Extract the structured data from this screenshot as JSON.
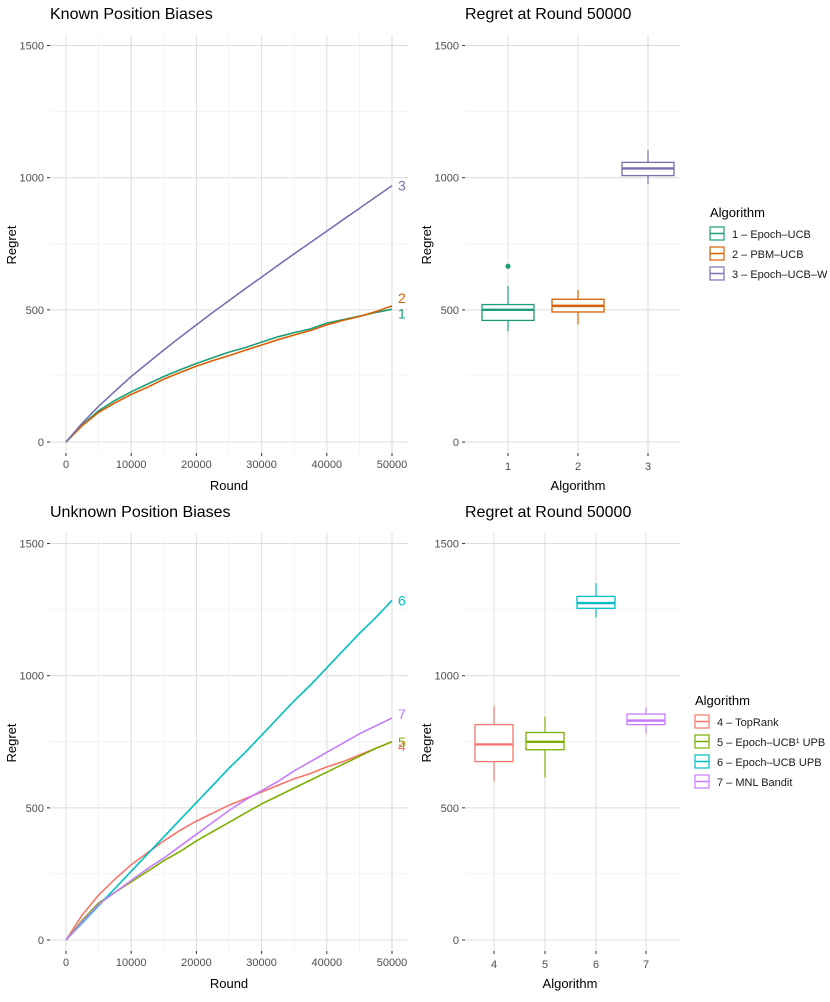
{
  "colors": {
    "1": "#1B9E77",
    "2": "#D95F02",
    "3": "#7570B3",
    "4": "#F8766D",
    "5": "#7CAE00",
    "6": "#00BFC4",
    "7": "#C77CFF"
  },
  "chart_data": [
    {
      "type": "line",
      "title": "Known Position Biases",
      "xlabel": "Round",
      "ylabel": "Regret",
      "xlim": [
        0,
        50000
      ],
      "ylim": [
        0,
        1500
      ],
      "xticks": [
        0,
        10000,
        20000,
        30000,
        40000,
        50000
      ],
      "yticks": [
        0,
        500,
        1000,
        1500
      ],
      "series": [
        {
          "name": "1",
          "x": [
            0,
            2500,
            5000,
            7500,
            10000,
            12500,
            15000,
            17500,
            20000,
            22500,
            25000,
            27500,
            30000,
            32500,
            35000,
            37500,
            40000,
            42500,
            45000,
            47500,
            50000
          ],
          "y": [
            0,
            65,
            118,
            157,
            190,
            219,
            248,
            273,
            297,
            319,
            340,
            357,
            378,
            398,
            414,
            428,
            450,
            463,
            476,
            490,
            502
          ]
        },
        {
          "name": "2",
          "x": [
            0,
            2500,
            5000,
            7500,
            10000,
            12500,
            15000,
            17500,
            20000,
            22500,
            25000,
            27500,
            30000,
            32500,
            35000,
            37500,
            40000,
            42500,
            45000,
            47500,
            50000
          ],
          "y": [
            0,
            62,
            112,
            148,
            180,
            207,
            238,
            263,
            287,
            308,
            327,
            347,
            367,
            387,
            405,
            422,
            443,
            460,
            475,
            493,
            515
          ]
        },
        {
          "name": "3",
          "x": [
            0,
            2500,
            5000,
            7500,
            10000,
            12500,
            15000,
            17500,
            20000,
            22500,
            25000,
            27500,
            30000,
            32500,
            35000,
            37500,
            40000,
            42500,
            45000,
            47500,
            50000
          ],
          "y": [
            0,
            72,
            135,
            192,
            248,
            298,
            348,
            396,
            443,
            490,
            535,
            580,
            624,
            668,
            712,
            755,
            798,
            841,
            884,
            927,
            970
          ]
        }
      ],
      "end_labels": [
        "3",
        "2",
        "1"
      ]
    },
    {
      "type": "box",
      "title": "Regret at Round 50000",
      "xlabel": "Algorithm",
      "ylabel": "Regret",
      "categories": [
        "1",
        "2",
        "3"
      ],
      "ylim": [
        0,
        1500
      ],
      "yticks": [
        0,
        500,
        1000,
        1500
      ],
      "boxes": [
        {
          "name": "1",
          "min": 420,
          "q1": 460,
          "median": 500,
          "q3": 520,
          "max": 590,
          "outliers": [
            665
          ]
        },
        {
          "name": "2",
          "min": 445,
          "q1": 492,
          "median": 515,
          "q3": 540,
          "max": 575,
          "outliers": []
        },
        {
          "name": "3",
          "min": 975,
          "q1": 1008,
          "median": 1035,
          "q3": 1058,
          "max": 1105,
          "outliers": []
        }
      ],
      "legend": {
        "title": "Algorithm",
        "entries": [
          "1 – Epoch–UCB",
          "2 – PBM–UCB",
          "3 – Epoch–UCB–W"
        ]
      }
    },
    {
      "type": "line",
      "title": "Unknown Position Biases",
      "xlabel": "Round",
      "ylabel": "Regret",
      "xlim": [
        0,
        50000
      ],
      "ylim": [
        0,
        1500
      ],
      "xticks": [
        0,
        10000,
        20000,
        30000,
        40000,
        50000
      ],
      "yticks": [
        0,
        500,
        1000,
        1500
      ],
      "series": [
        {
          "name": "4",
          "x": [
            0,
            2500,
            5000,
            7500,
            10000,
            12500,
            15000,
            17500,
            20000,
            22500,
            25000,
            27500,
            30000,
            32500,
            35000,
            37500,
            40000,
            42500,
            45000,
            47500,
            50000
          ],
          "y": [
            0,
            95,
            170,
            230,
            285,
            330,
            375,
            415,
            450,
            480,
            510,
            535,
            560,
            585,
            610,
            630,
            655,
            675,
            700,
            725,
            750
          ]
        },
        {
          "name": "5",
          "x": [
            0,
            2500,
            5000,
            7500,
            10000,
            12500,
            15000,
            17500,
            20000,
            22500,
            25000,
            27500,
            30000,
            32500,
            35000,
            37500,
            40000,
            42500,
            45000,
            47500,
            50000
          ],
          "y": [
            0,
            75,
            140,
            180,
            220,
            260,
            300,
            335,
            375,
            410,
            445,
            480,
            515,
            545,
            575,
            605,
            635,
            665,
            695,
            725,
            750
          ]
        },
        {
          "name": "6",
          "x": [
            0,
            2500,
            5000,
            7500,
            10000,
            12500,
            15000,
            17500,
            20000,
            22500,
            25000,
            27500,
            30000,
            32500,
            35000,
            37500,
            40000,
            42500,
            45000,
            47500,
            50000
          ],
          "y": [
            0,
            65,
            130,
            195,
            260,
            325,
            390,
            455,
            520,
            585,
            650,
            710,
            775,
            840,
            905,
            965,
            1030,
            1095,
            1160,
            1220,
            1285
          ]
        },
        {
          "name": "7",
          "x": [
            0,
            2500,
            5000,
            7500,
            10000,
            12500,
            15000,
            17500,
            20000,
            22500,
            25000,
            27500,
            30000,
            32500,
            35000,
            37500,
            40000,
            42500,
            45000,
            47500,
            50000
          ],
          "y": [
            0,
            70,
            135,
            180,
            225,
            270,
            310,
            355,
            400,
            445,
            490,
            530,
            565,
            600,
            640,
            675,
            710,
            745,
            780,
            810,
            840
          ]
        }
      ],
      "end_labels": [
        "6",
        "7",
        "5",
        "4"
      ]
    },
    {
      "type": "box",
      "title": "Regret at Round 50000",
      "xlabel": "Algorithm",
      "ylabel": "Regret",
      "categories": [
        "4",
        "5",
        "6",
        "7"
      ],
      "ylim": [
        0,
        1500
      ],
      "yticks": [
        0,
        500,
        1000,
        1500
      ],
      "boxes": [
        {
          "name": "4",
          "min": 600,
          "q1": 675,
          "median": 740,
          "q3": 815,
          "max": 885,
          "outliers": []
        },
        {
          "name": "5",
          "min": 615,
          "q1": 720,
          "median": 750,
          "q3": 785,
          "max": 845,
          "outliers": []
        },
        {
          "name": "6",
          "min": 1220,
          "q1": 1255,
          "median": 1275,
          "q3": 1300,
          "max": 1350,
          "outliers": []
        },
        {
          "name": "7",
          "min": 780,
          "q1": 815,
          "median": 830,
          "q3": 855,
          "max": 880,
          "outliers": []
        }
      ],
      "legend": {
        "title": "Algorithm",
        "entries": [
          "4 – TopRank",
          "5 – Epoch–UCB¹ UPB",
          "6 – Epoch–UCB UPB",
          "7 – MNL Bandit"
        ]
      }
    }
  ]
}
